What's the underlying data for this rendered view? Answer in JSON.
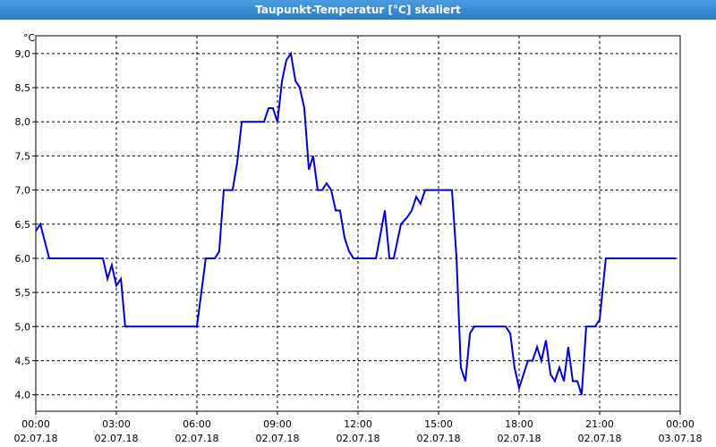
{
  "window_title": "Taupunkt-Temperatur [°C] skaliert",
  "chart_data": {
    "type": "line",
    "y_unit": "°C",
    "xlim": [
      0,
      24
    ],
    "ylim": [
      3.76,
      9.26
    ],
    "xticks": [
      {
        "value": 0,
        "label": "00:00"
      },
      {
        "value": 3,
        "label": "03:00"
      },
      {
        "value": 6,
        "label": "06:00"
      },
      {
        "value": 9,
        "label": "09:00"
      },
      {
        "value": 12,
        "label": "12:00"
      },
      {
        "value": 15,
        "label": "15:00"
      },
      {
        "value": 18,
        "label": "18:00"
      },
      {
        "value": 21,
        "label": "21:00"
      },
      {
        "value": 24,
        "label": "00:00"
      }
    ],
    "xtick_dates": [
      "02.07.18",
      "02.07.18",
      "02.07.18",
      "02.07.18",
      "02.07.18",
      "02.07.18",
      "02.07.18",
      "02.07.18",
      "03.07.18"
    ],
    "yticks": [
      {
        "value": 4,
        "label": "4,0"
      },
      {
        "value": 4.5,
        "label": "4,5"
      },
      {
        "value": 5,
        "label": "5,0"
      },
      {
        "value": 5.5,
        "label": "5,5"
      },
      {
        "value": 6,
        "label": "6,0"
      },
      {
        "value": 6.5,
        "label": "6,5"
      },
      {
        "value": 7,
        "label": "7,0"
      },
      {
        "value": 7.5,
        "label": "7,5"
      },
      {
        "value": 8,
        "label": "8,0"
      },
      {
        "value": 8.5,
        "label": "8,5"
      },
      {
        "value": 9,
        "label": "9,0"
      }
    ],
    "grid": true,
    "color": "#0000cc",
    "x": [
      0,
      0.17,
      0.4,
      0.5,
      2.5,
      2.67,
      2.83,
      3.0,
      3.17,
      3.33,
      6.0,
      6.33,
      6.67,
      6.83,
      7.0,
      7.33,
      7.5,
      7.67,
      8.5,
      8.67,
      8.83,
      9.0,
      9.17,
      9.33,
      9.5,
      9.67,
      9.83,
      10.0,
      10.17,
      10.33,
      10.5,
      10.67,
      10.83,
      11.0,
      11.17,
      11.33,
      11.5,
      11.67,
      11.83,
      12.67,
      13.0,
      13.17,
      13.33,
      13.6,
      13.83,
      14.0,
      14.17,
      14.33,
      14.5,
      15.5,
      15.67,
      15.83,
      16.0,
      16.17,
      16.33,
      17.5,
      17.67,
      17.83,
      18.0,
      18.33,
      18.5,
      18.67,
      18.83,
      19.0,
      19.17,
      19.33,
      19.5,
      19.67,
      19.83,
      20.0,
      20.17,
      20.33,
      20.5,
      20.83,
      21.0,
      21.23,
      23.83
    ],
    "values": [
      6.4,
      6.5,
      6.15,
      6.0,
      6.0,
      5.7,
      5.9,
      5.6,
      5.7,
      5.0,
      5.0,
      6.0,
      6.0,
      6.1,
      7.0,
      7.0,
      7.4,
      8.0,
      8.0,
      8.2,
      8.2,
      8.0,
      8.6,
      8.9,
      9.0,
      8.6,
      8.5,
      8.2,
      7.3,
      7.5,
      7.0,
      7.0,
      7.1,
      7.0,
      6.7,
      6.7,
      6.3,
      6.1,
      6.0,
      6.0,
      6.7,
      6.0,
      6.0,
      6.5,
      6.6,
      6.7,
      6.9,
      6.8,
      7.0,
      7.0,
      6.0,
      4.4,
      4.2,
      4.9,
      5.0,
      5.0,
      4.9,
      4.4,
      4.1,
      4.5,
      4.5,
      4.7,
      4.5,
      4.8,
      4.3,
      4.2,
      4.4,
      4.2,
      4.7,
      4.2,
      4.2,
      4.0,
      5.0,
      5.0,
      5.1,
      6.0,
      6.0
    ]
  }
}
